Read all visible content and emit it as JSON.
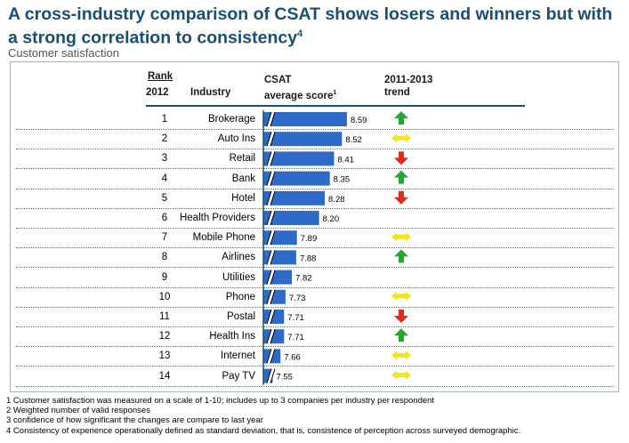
{
  "title": "A cross-industry comparison of CSAT shows losers and winners but with a strong correlation to consistency",
  "title_sup": "4",
  "subtitle": "Customer satisfaction",
  "headers": {
    "rank": "Rank",
    "year": "2012",
    "industry": "Industry",
    "csat_line1": "CSAT",
    "csat_line2": "average score",
    "csat_sup": "1",
    "trend_line1": "2011-2013",
    "trend_line2": "trend"
  },
  "colors": {
    "title": "#1a4f72",
    "bar": "#2e6bc9",
    "trend_up": "#22a82e",
    "trend_flat": "#f2e619",
    "trend_down": "#e02a1a"
  },
  "chart_data": {
    "type": "bar",
    "orientation": "horizontal",
    "title": "Customer satisfaction",
    "categories": [
      "Brokerage",
      "Auto Ins",
      "Retail",
      "Bank",
      "Hotel",
      "Health Providers",
      "Mobile Phone",
      "Airlines",
      "Utilities",
      "Phone",
      "Postal",
      "Health Ins",
      "Internet",
      "Pay TV"
    ],
    "ranks": [
      "1",
      "2",
      "3",
      "4",
      "5",
      "6",
      "7",
      "8",
      "9",
      "10",
      "11",
      "12",
      "13",
      "14"
    ],
    "values": [
      8.59,
      8.52,
      8.41,
      8.35,
      8.28,
      8.2,
      7.89,
      7.88,
      7.82,
      7.73,
      7.71,
      7.71,
      7.66,
      7.55
    ],
    "value_labels": [
      "8.59",
      "8.52",
      "8.41",
      "8.35",
      "8.28",
      "8.20",
      "7.89",
      "7.88",
      "7.82",
      "7.73",
      "7.71",
      "7.71",
      "7.66",
      "7.55"
    ],
    "trends": [
      "up",
      "flat",
      "down",
      "up",
      "down",
      "none",
      "flat",
      "up",
      "none",
      "flat",
      "down",
      "up",
      "flat",
      "flat"
    ],
    "axis_break": true,
    "xlim": [
      7.42,
      8.59
    ],
    "grid": false
  },
  "footnotes": [
    "1 Customer satisfaction was measured on a scale of 1-10; includes up to 3 companies per industry per respondent",
    "2  Weighted number of valid responses",
    "3 confidence of how significant the changes are compare to last year",
    "4 Consistency of experience operationally defined as standard deviation, that is, consistence of perception across surveyed demographic."
  ]
}
